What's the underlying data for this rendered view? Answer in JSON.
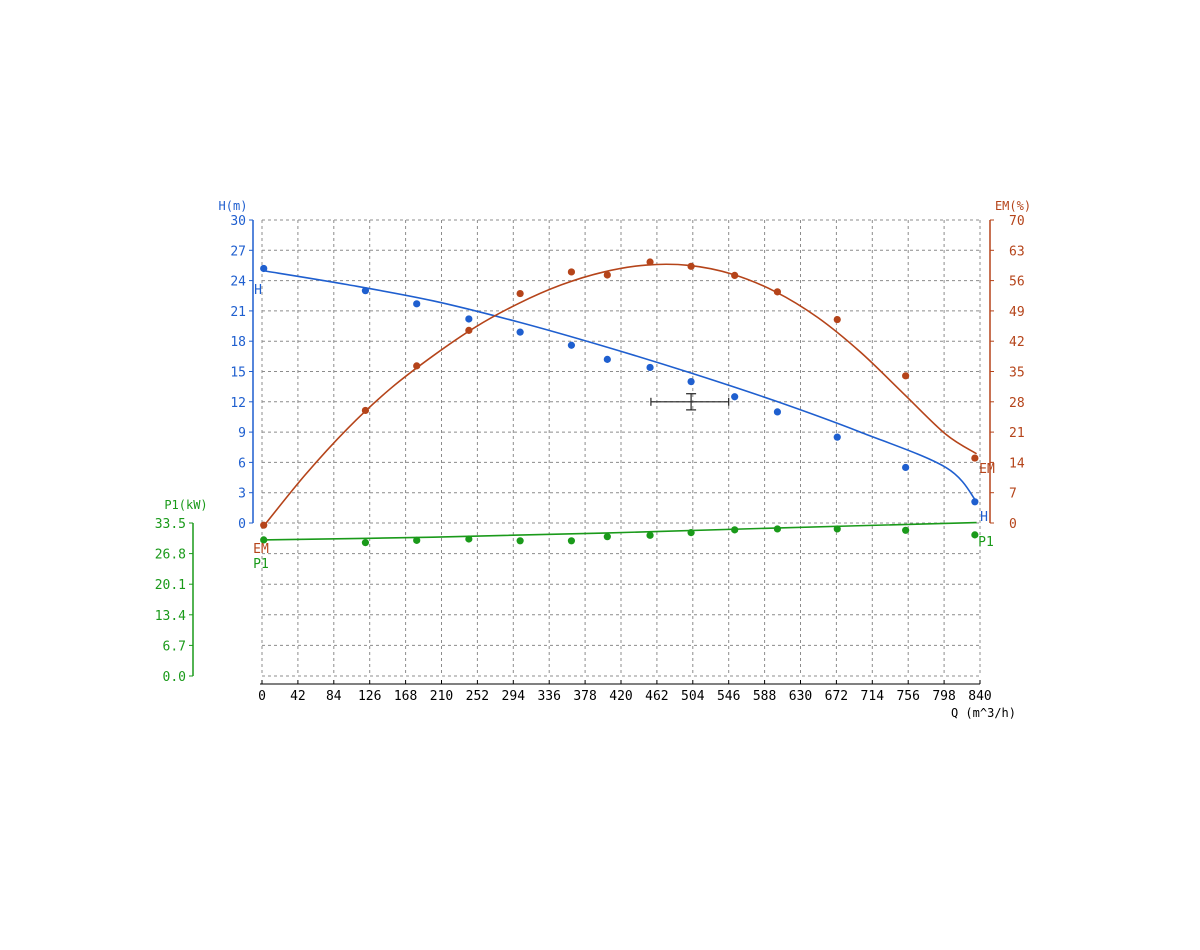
{
  "chart_data": {
    "type": "line",
    "title": "",
    "xlabel": "Q (m^3/h)",
    "x_ticks": [
      "0",
      "42",
      "84",
      "126",
      "168",
      "210",
      "252",
      "294",
      "336",
      "378",
      "420",
      "462",
      "504",
      "546",
      "588",
      "630",
      "672",
      "714",
      "756",
      "798",
      "840"
    ],
    "xlim": [
      0,
      840
    ],
    "grid": true,
    "axes": {
      "H": {
        "label": "H(m)",
        "ticks": [
          "0",
          "3",
          "6",
          "9",
          "12",
          "15",
          "18",
          "21",
          "24",
          "27",
          "30"
        ],
        "range": [
          0,
          30
        ],
        "color": "#1f5fcf"
      },
      "EM": {
        "label": "EM(%)",
        "ticks": [
          "0",
          "7",
          "14",
          "21",
          "28",
          "35",
          "42",
          "49",
          "56",
          "63",
          "70"
        ],
        "range": [
          0,
          70
        ],
        "color": "#b5441a"
      },
      "P1": {
        "label": "P1(kW)",
        "ticks": [
          "0.0",
          "6.7",
          "13.4",
          "20.1",
          "26.8",
          "33.5"
        ],
        "range": [
          0,
          33.5
        ],
        "color": "#1a9a1a"
      }
    },
    "series": [
      {
        "name": "H",
        "axis": "H",
        "color": "#1f5fcf",
        "fit_x": [
          0,
          100,
          200,
          300,
          400,
          500,
          600,
          700,
          800,
          836
        ],
        "fit_y": [
          25.0,
          23.6,
          22.0,
          19.9,
          17.5,
          14.9,
          12.1,
          9.0,
          5.5,
          2.1
        ],
        "points_x": [
          2,
          121,
          181,
          242,
          302,
          362,
          404,
          454,
          502,
          553,
          603,
          673,
          753,
          834
        ],
        "points_y": [
          25.2,
          23.0,
          21.7,
          20.2,
          18.9,
          17.6,
          16.2,
          15.4,
          14.0,
          12.5,
          11.0,
          8.5,
          5.5,
          2.1
        ]
      },
      {
        "name": "EM",
        "axis": "EM",
        "color": "#b5441a",
        "fit_x": [
          0,
          50,
          100,
          150,
          200,
          250,
          300,
          350,
          400,
          450,
          500,
          550,
          600,
          650,
          700,
          750,
          800,
          836
        ],
        "fit_y": [
          -1.2,
          11.0,
          21.8,
          31.0,
          38.6,
          45.3,
          50.7,
          55.0,
          58.0,
          59.6,
          59.5,
          57.5,
          53.5,
          47.5,
          39.5,
          30.0,
          20.5,
          16.0
        ],
        "points_x": [
          2,
          121,
          181,
          242,
          302,
          362,
          404,
          454,
          502,
          553,
          603,
          673,
          753,
          834
        ],
        "points_y": [
          -0.5,
          26.0,
          36.3,
          44.5,
          53.0,
          58.0,
          57.3,
          60.3,
          59.3,
          57.2,
          53.4,
          47.0,
          34.0,
          15.0
        ]
      },
      {
        "name": "P1",
        "axis": "P1",
        "color": "#1a9a1a",
        "fit_x": [
          0,
          200,
          400,
          600,
          836
        ],
        "fit_y": [
          29.8,
          30.4,
          31.3,
          32.4,
          33.6
        ],
        "points_x": [
          2,
          121,
          181,
          242,
          302,
          362,
          404,
          454,
          502,
          553,
          603,
          673,
          753,
          834
        ],
        "points_y": [
          29.8,
          29.2,
          29.7,
          30.0,
          29.6,
          29.6,
          30.5,
          30.8,
          31.4,
          32.0,
          32.2,
          32.2,
          31.9,
          30.9
        ]
      }
    ],
    "duty_point": {
      "x": 502,
      "y": 12.0,
      "axis": "H",
      "x_err": [
        455,
        546
      ],
      "y_err": [
        11.2,
        12.8
      ],
      "color": "#222222"
    }
  }
}
